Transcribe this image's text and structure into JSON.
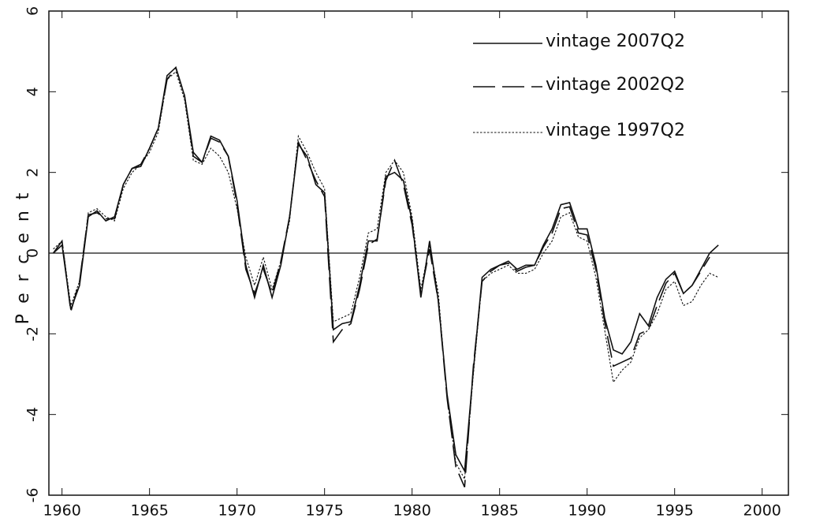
{
  "chart_data": {
    "type": "line",
    "y_label": "Percent",
    "x": [
      1959.5,
      1960,
      1960.5,
      1961,
      1961.5,
      1962,
      1962.5,
      1963,
      1963.5,
      1964,
      1964.5,
      1965,
      1965.5,
      1966,
      1966.5,
      1967,
      1967.5,
      1968,
      1968.5,
      1969,
      1969.5,
      1970,
      1970.5,
      1971,
      1971.5,
      1972,
      1972.5,
      1973,
      1973.5,
      1974,
      1974.5,
      1975,
      1975.5,
      1976,
      1976.5,
      1977,
      1977.5,
      1978,
      1978.5,
      1979,
      1979.5,
      1980,
      1980.5,
      1981,
      1981.5,
      1982,
      1982.5,
      1983,
      1983.5,
      1984,
      1984.5,
      1985,
      1985.5,
      1986,
      1986.5,
      1987,
      1987.5,
      1988,
      1988.5,
      1989,
      1989.5,
      1990,
      1990.5,
      1991,
      1991.5,
      1992,
      1992.5,
      1993,
      1993.5,
      1994,
      1994.5,
      1995,
      1995.5,
      1996,
      1996.5,
      1997,
      1997.5
    ],
    "series": [
      {
        "name": "vintage 2007Q2",
        "color": "#111111",
        "style": "solid",
        "values": [
          0.0,
          0.2,
          -1.4,
          -0.8,
          0.9,
          1.05,
          0.8,
          0.9,
          1.7,
          2.1,
          2.15,
          2.6,
          3.1,
          4.4,
          4.6,
          3.9,
          2.5,
          2.25,
          2.9,
          2.8,
          2.4,
          1.3,
          -0.3,
          -1.1,
          -0.3,
          -1.1,
          -0.3,
          0.9,
          2.7,
          2.4,
          1.7,
          1.5,
          -1.9,
          -1.75,
          -1.7,
          -0.8,
          0.3,
          0.3,
          1.9,
          2.0,
          1.8,
          0.8,
          -1.1,
          0.3,
          -1.2,
          -3.5,
          -5.0,
          -5.4,
          -2.9,
          -0.6,
          -0.4,
          -0.3,
          -0.2,
          -0.4,
          -0.3,
          -0.3,
          0.2,
          0.6,
          1.2,
          1.25,
          0.6,
          0.6,
          -0.3,
          -1.6,
          -2.4,
          -2.5,
          -2.2,
          -1.5,
          -1.8,
          -1.1,
          -0.65,
          -0.45,
          -1.0,
          -0.8,
          -0.4,
          0.0,
          0.2
        ]
      },
      {
        "name": "vintage 2002Q2",
        "color": "#111111",
        "style": "dashed",
        "values": [
          0.0,
          0.3,
          -1.45,
          -0.7,
          0.95,
          1.0,
          0.85,
          0.85,
          1.7,
          2.1,
          2.2,
          2.6,
          3.1,
          4.3,
          4.6,
          3.9,
          2.4,
          2.25,
          2.85,
          2.75,
          2.4,
          1.2,
          -0.4,
          -1.0,
          -0.4,
          -1.0,
          -0.2,
          0.9,
          2.75,
          2.3,
          1.8,
          1.4,
          -2.2,
          -1.9,
          -1.75,
          -0.9,
          0.2,
          0.35,
          1.8,
          2.3,
          1.7,
          0.7,
          -1.0,
          0.1,
          -1.2,
          -3.6,
          -5.3,
          -5.8,
          -2.8,
          -0.7,
          -0.45,
          -0.3,
          -0.25,
          -0.45,
          -0.35,
          -0.3,
          0.15,
          0.5,
          1.1,
          1.15,
          0.5,
          0.45,
          -0.4,
          -1.7,
          -2.8,
          -2.7,
          -2.6,
          -2.0,
          -1.9,
          -1.3,
          -0.75,
          -0.5,
          -1.0,
          -0.8,
          -0.45,
          -0.1,
          null
        ]
      },
      {
        "name": "vintage 1997Q2",
        "color": "#111111",
        "style": "dotted",
        "values": [
          0.1,
          0.3,
          -1.3,
          -0.7,
          1.0,
          1.1,
          0.9,
          0.8,
          1.6,
          2.0,
          2.2,
          2.5,
          3.0,
          4.3,
          4.5,
          3.8,
          2.3,
          2.2,
          2.6,
          2.4,
          2.0,
          1.1,
          -0.1,
          -0.8,
          -0.1,
          -0.9,
          -0.2,
          0.8,
          2.9,
          2.5,
          2.0,
          1.6,
          -1.7,
          -1.6,
          -1.5,
          -0.6,
          0.5,
          0.6,
          2.0,
          2.3,
          2.0,
          0.9,
          -0.9,
          0.2,
          -1.0,
          -3.6,
          -5.2,
          -5.6,
          -3.0,
          -0.7,
          -0.5,
          -0.4,
          -0.3,
          -0.5,
          -0.5,
          -0.4,
          0.0,
          0.3,
          0.9,
          1.0,
          0.4,
          0.3,
          -0.6,
          -1.9,
          -3.2,
          -2.9,
          -2.7,
          -2.1,
          -1.9,
          -1.5,
          -0.9,
          -0.7,
          -1.3,
          -1.2,
          -0.8,
          -0.5,
          -0.6
        ]
      }
    ],
    "xlim": [
      1959.25,
      2001.5
    ],
    "xticks": [
      1960,
      1965,
      1970,
      1975,
      1980,
      1985,
      1990,
      1995,
      2000
    ],
    "ylim": [
      -6,
      6
    ],
    "yticks": [
      -6,
      -4,
      -2,
      0,
      2,
      4,
      6
    ],
    "legend": "top-right",
    "zero_line": true
  }
}
